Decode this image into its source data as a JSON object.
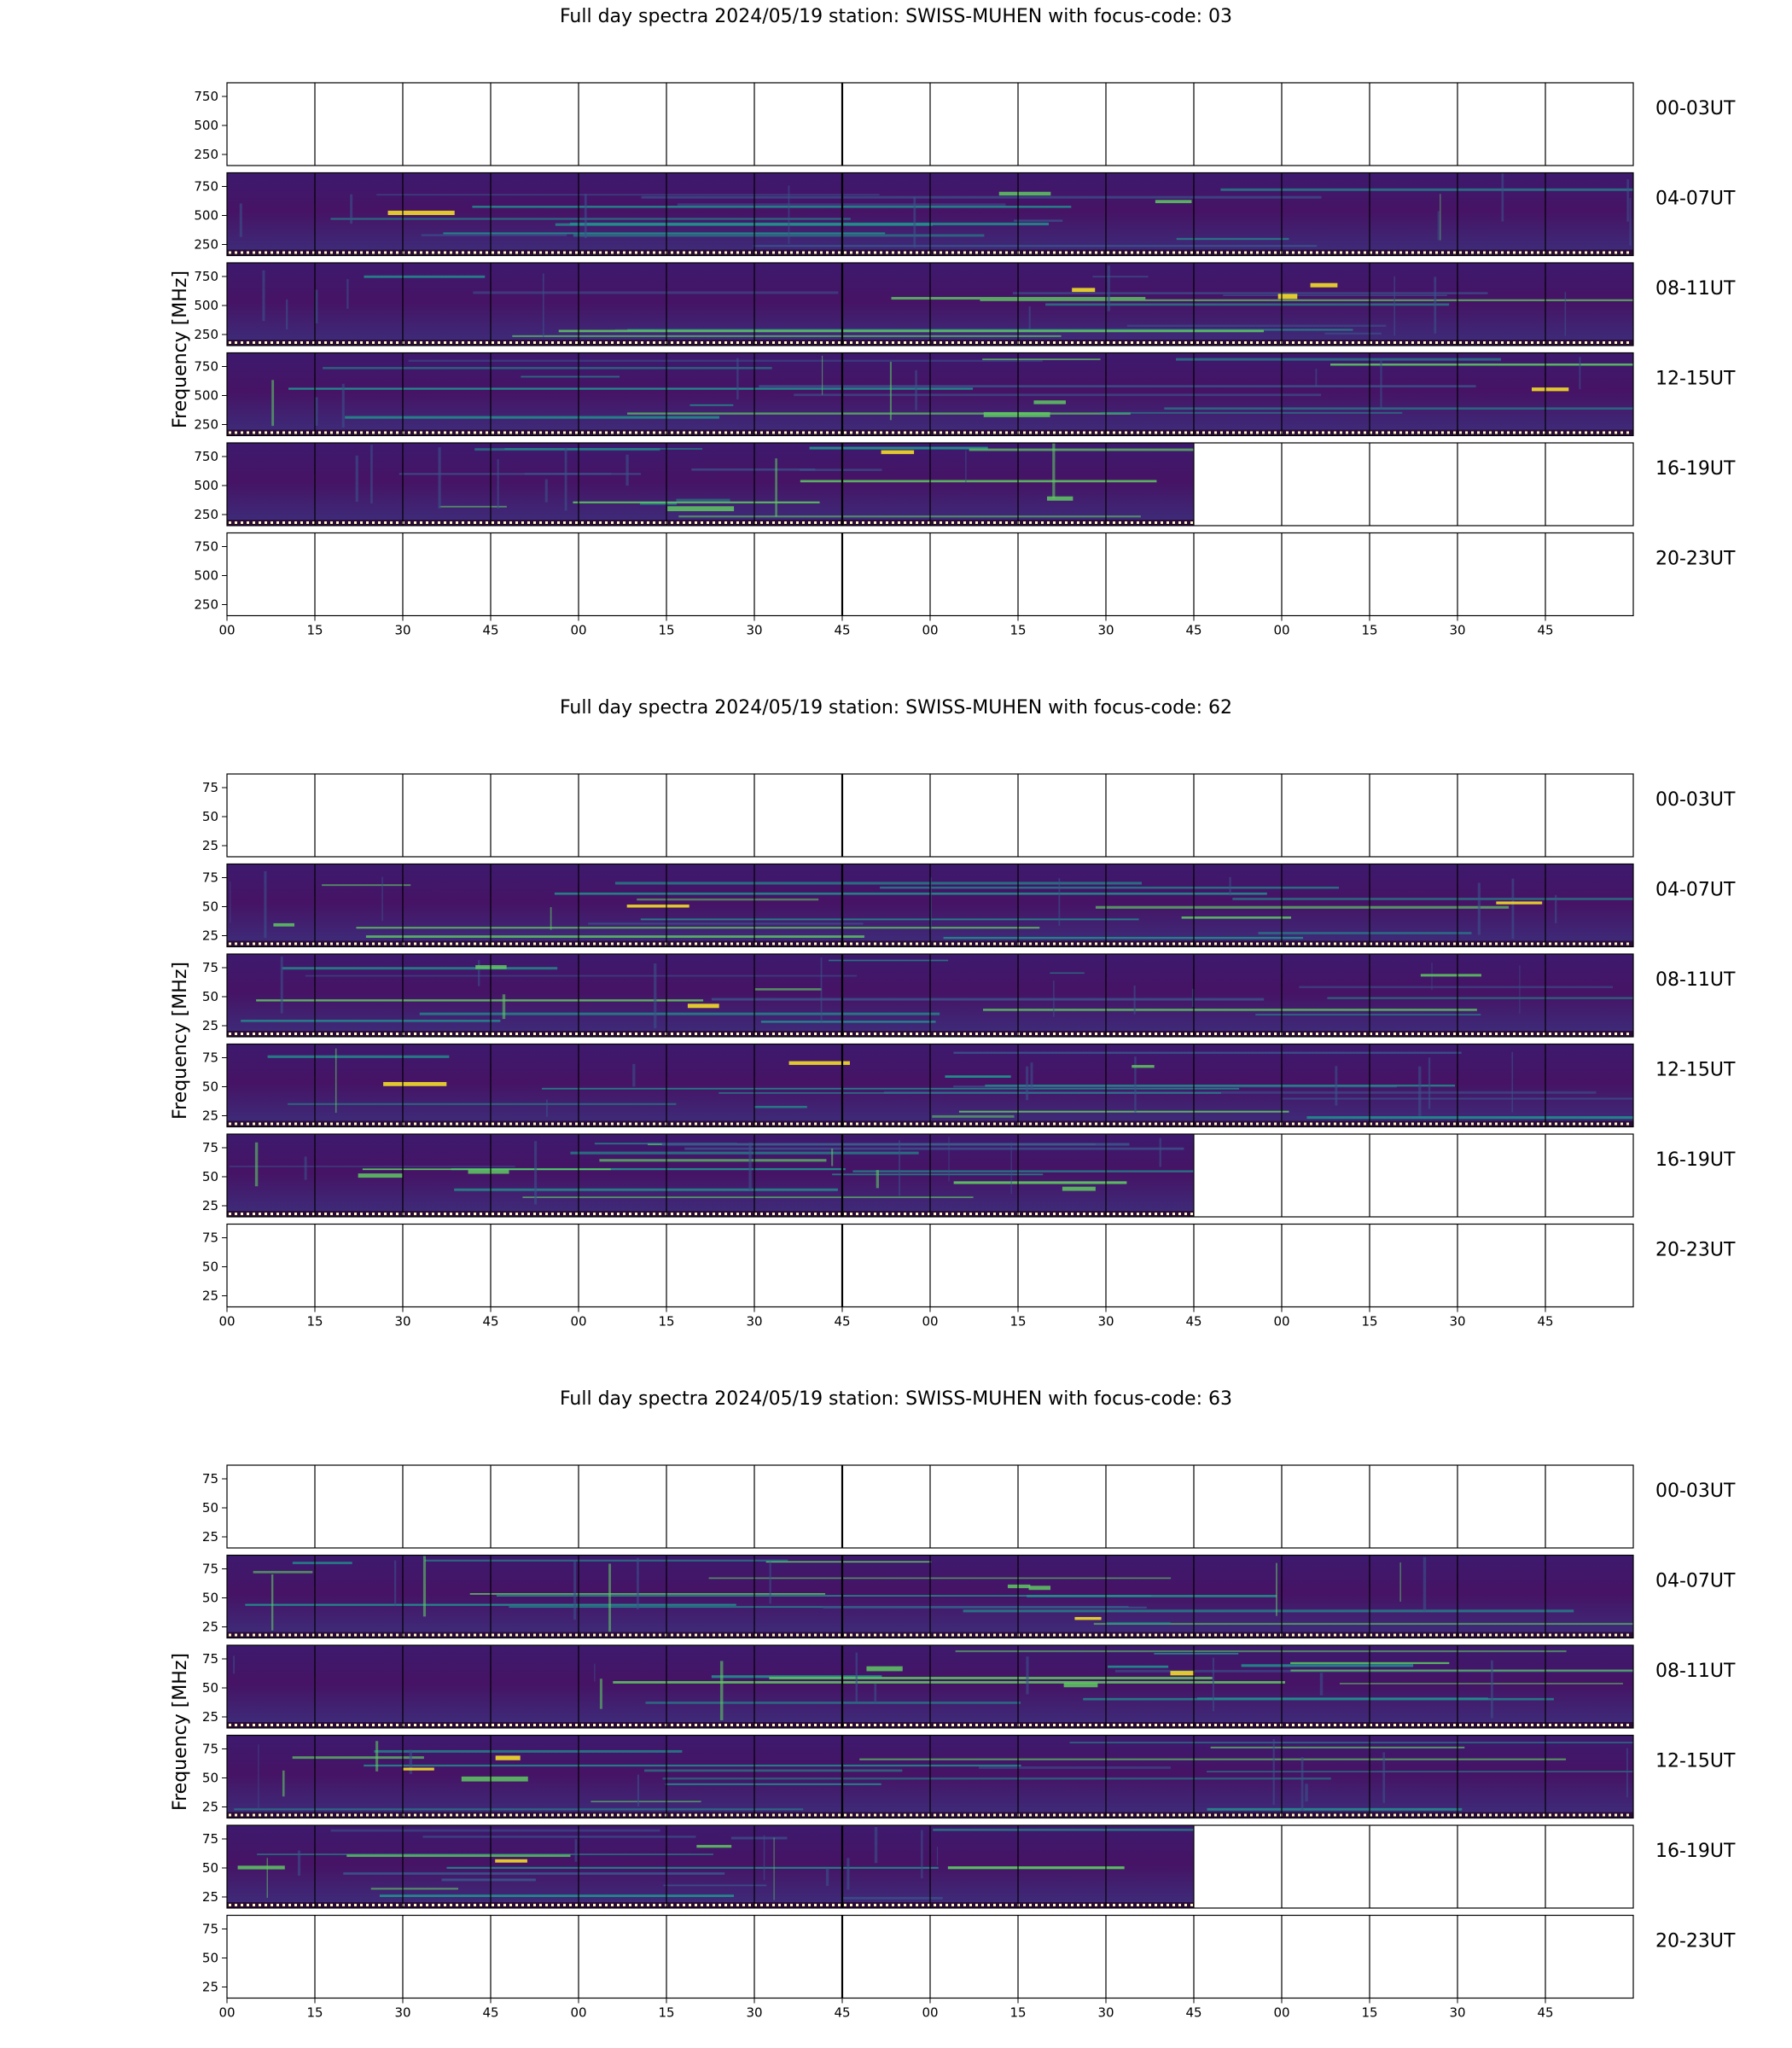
{
  "chart_data": [
    {
      "type": "heatmap",
      "title": "Full day spectra 2024/05/19 station: SWISS-MUHEN with focus-code: 03",
      "ylabel": "Frequency [MHz]",
      "y_ticks": [
        "750",
        "500",
        "250"
      ],
      "x_ticks": [
        "00",
        "15",
        "30",
        "45",
        "00",
        "15",
        "30",
        "45",
        "00",
        "15",
        "30",
        "45",
        "00",
        "15",
        "30",
        "45"
      ],
      "row_labels": [
        "00-03UT",
        "04-07UT",
        "08-11UT",
        "12-15UT",
        "16-19UT",
        "20-23UT"
      ],
      "rows_with_data": [
        1,
        2,
        3,
        4
      ],
      "row_data_end_fraction": [
        0,
        1,
        1,
        1,
        0.6875,
        0
      ]
    },
    {
      "type": "heatmap",
      "title": "Full day spectra 2024/05/19 station: SWISS-MUHEN with focus-code: 62",
      "ylabel": "Frequency [MHz]",
      "y_ticks": [
        "75",
        "50",
        "25"
      ],
      "x_ticks": [
        "00",
        "15",
        "30",
        "45",
        "00",
        "15",
        "30",
        "45",
        "00",
        "15",
        "30",
        "45",
        "00",
        "15",
        "30",
        "45"
      ],
      "row_labels": [
        "00-03UT",
        "04-07UT",
        "08-11UT",
        "12-15UT",
        "16-19UT",
        "20-23UT"
      ],
      "rows_with_data": [
        1,
        2,
        3,
        4
      ],
      "row_data_end_fraction": [
        0,
        1,
        1,
        1,
        0.6875,
        0
      ]
    },
    {
      "type": "heatmap",
      "title": "Full day spectra 2024/05/19 station: SWISS-MUHEN with focus-code: 63",
      "ylabel": "Frequency [MHz]",
      "y_ticks": [
        "75",
        "50",
        "25"
      ],
      "x_ticks": [
        "00",
        "15",
        "30",
        "45",
        "00",
        "15",
        "30",
        "45",
        "00",
        "15",
        "30",
        "45",
        "00",
        "15",
        "30",
        "45"
      ],
      "row_labels": [
        "00-03UT",
        "04-07UT",
        "08-11UT",
        "12-15UT",
        "16-19UT",
        "20-23UT"
      ],
      "rows_with_data": [
        1,
        2,
        3,
        4
      ],
      "row_data_end_fraction": [
        0,
        1,
        1,
        1,
        0.6875,
        0
      ]
    }
  ],
  "colors": {
    "background": "#440154",
    "mid": "#3b528b",
    "teal": "#21918c",
    "green": "#5ec962",
    "yellow": "#fde725"
  }
}
